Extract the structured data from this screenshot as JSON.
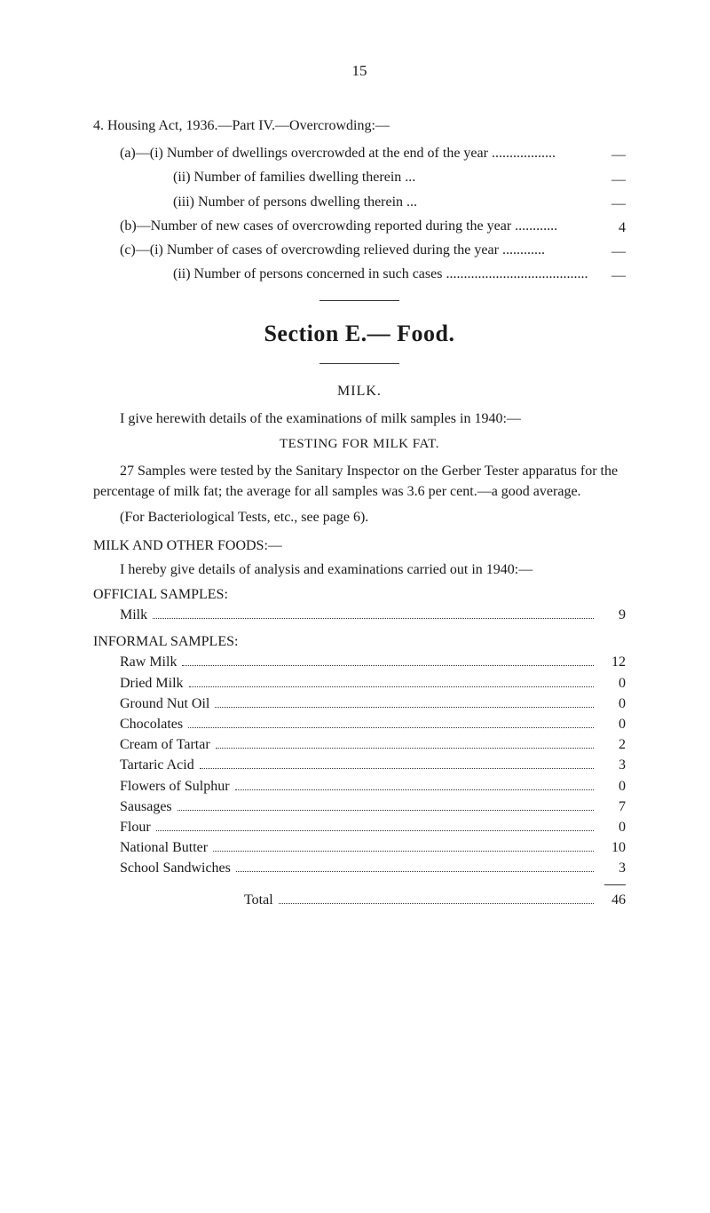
{
  "page_number": "15",
  "housing": {
    "heading": "4. Housing Act, 1936.—Part IV.—Overcrowding:—",
    "items": [
      {
        "label": "(a)—(i) Number of dwellings overcrowded at the end of the year  ..................",
        "value": "—"
      },
      {
        "label": "(ii) Number of families dwelling therein ...",
        "value": "—"
      },
      {
        "label": "(iii) Number of persons dwelling therein ...",
        "value": "—"
      },
      {
        "label": "(b)—Number of new cases of overcrowding reported during the year ............",
        "value": "4"
      },
      {
        "label": "(c)—(i) Number of cases of overcrowding relieved during the year  ............",
        "value": "—"
      },
      {
        "label": "(ii) Number of persons concerned in such cases  ........................................",
        "value": "—"
      }
    ]
  },
  "section_title": "Section E.— Food.",
  "milk": {
    "heading": "MILK.",
    "intro": "I give herewith details of the examinations of milk samples in 1940:—",
    "testing_heading": "TESTING FOR MILK FAT.",
    "testing_para": "27 Samples were tested by the Sanitary Inspector on the Gerber Tester apparatus for the percentage of milk fat; the average for all samples was 3.6 per cent.—a good average.",
    "bact": "(For Bacteriological Tests, etc., see page 6)."
  },
  "foods": {
    "heading": "MILK AND OTHER FOODS:—",
    "intro": "I hereby give details of analysis and examinations carried out in 1940:—",
    "official_heading": "OFFICIAL SAMPLES:",
    "official": [
      {
        "label": "Milk",
        "value": "9"
      }
    ],
    "informal_heading": "INFORMAL SAMPLES:",
    "informal": [
      {
        "label": "Raw Milk",
        "value": "12"
      },
      {
        "label": "Dried Milk",
        "value": "0"
      },
      {
        "label": "Ground Nut Oil",
        "value": "0"
      },
      {
        "label": "Chocolates",
        "value": "0"
      },
      {
        "label": "Cream of Tartar",
        "value": "2"
      },
      {
        "label": "Tartaric Acid",
        "value": "3"
      },
      {
        "label": "Flowers of Sulphur",
        "value": "0"
      },
      {
        "label": "Sausages",
        "value": "7"
      },
      {
        "label": "Flour",
        "value": "0"
      },
      {
        "label": "National Butter",
        "value": "10"
      },
      {
        "label": "School Sandwiches",
        "value": "3"
      }
    ],
    "total_label": "Total",
    "total_value": "46"
  }
}
